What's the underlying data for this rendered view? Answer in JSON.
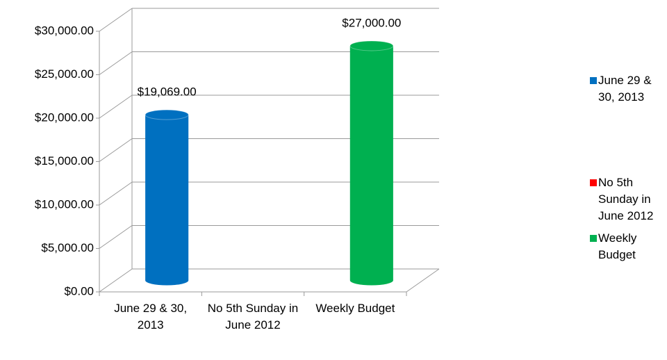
{
  "chart_data": {
    "type": "bar3d",
    "categories": [
      "June 29 & 30, 2013",
      "No 5th Sunday in June 2012",
      "Weekly Budget"
    ],
    "values": [
      19069,
      null,
      27000
    ],
    "value_labels": [
      "$19,069.00",
      null,
      "$27,000.00"
    ],
    "colors": [
      "#0070c0",
      "#ff0000",
      "#00b050"
    ],
    "ylim": [
      0,
      30000
    ],
    "yticks": [
      {
        "value": 0,
        "label": "$0.00"
      },
      {
        "value": 5000,
        "label": "$5,000.00"
      },
      {
        "value": 10000,
        "label": "$10,000.00"
      },
      {
        "value": 15000,
        "label": "$15,000.00"
      },
      {
        "value": 20000,
        "label": "$20,000.00"
      },
      {
        "value": 25000,
        "label": "$25,000.00"
      },
      {
        "value": 30000,
        "label": "$30,000.00"
      }
    ],
    "grid": true,
    "legend": "right"
  }
}
